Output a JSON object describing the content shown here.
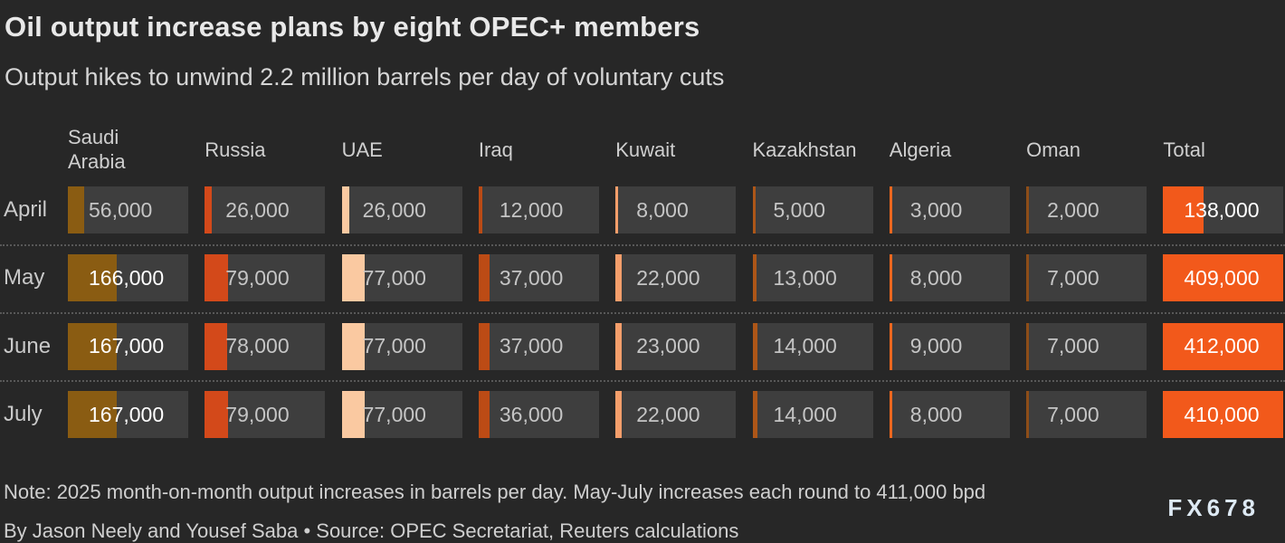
{
  "header": {
    "title": "Oil output increase plans by eight OPEC+ members",
    "subtitle": "Output hikes to unwind 2.2 million barrels per day of voluntary cuts"
  },
  "chart_data": {
    "type": "table",
    "title": "Oil output increase plans by eight OPEC+ members",
    "subtitle": "Output hikes to unwind 2.2 million barrels per day of voluntary cuts",
    "unit": "barrels per day, 2025 month-on-month output increases",
    "columns": [
      {
        "label": "Saudi Arabia",
        "color": "#8a5c12"
      },
      {
        "label": "Russia",
        "color": "#d3491a"
      },
      {
        "label": "UAE",
        "color": "#fac9a1"
      },
      {
        "label": "Iraq",
        "color": "#bc4b15"
      },
      {
        "label": "Kuwait",
        "color": "#f59e6b"
      },
      {
        "label": "Kazakhstan",
        "color": "#ad5618"
      },
      {
        "label": "Algeria",
        "color": "#ec671f"
      },
      {
        "label": "Oman",
        "color": "#8d4d18"
      },
      {
        "label": "Total",
        "color": "#f2591b"
      }
    ],
    "rows": [
      {
        "label": "April",
        "values": [
          56000,
          26000,
          26000,
          12000,
          8000,
          5000,
          3000,
          2000,
          138000
        ]
      },
      {
        "label": "May",
        "values": [
          166000,
          79000,
          77000,
          37000,
          22000,
          13000,
          8000,
          7000,
          409000
        ]
      },
      {
        "label": "June",
        "values": [
          167000,
          78000,
          77000,
          37000,
          23000,
          14000,
          9000,
          7000,
          412000
        ]
      },
      {
        "label": "July",
        "values": [
          167000,
          79000,
          77000,
          36000,
          22000,
          14000,
          8000,
          7000,
          410000
        ]
      }
    ],
    "bar_scale_max": 410000,
    "cell_background": "#3e3e3e",
    "value_text_color": "#c5c5c5",
    "value_text_on_bar": "#ffffff",
    "legend_position": "none",
    "grid": false
  },
  "footer": {
    "note": "Note: 2025 month-on-month output increases in barrels per day. May-July increases each round to 411,000 bpd",
    "byline": "By Jason Neely and Yousef Saba • Source: OPEC Secretariat, Reuters calculations",
    "logo": "FX678"
  }
}
